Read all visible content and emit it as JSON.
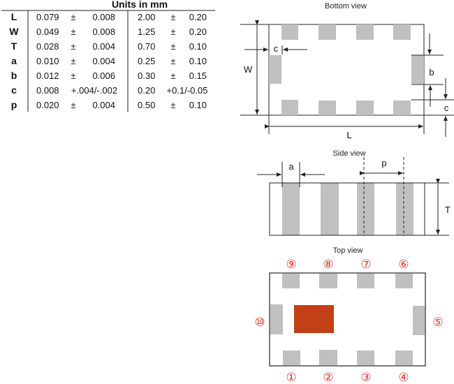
{
  "table": {
    "header": "Units in mm",
    "rows": [
      {
        "param": "L",
        "in_value": "0.079",
        "in_pm": "±",
        "in_tol": "0.008",
        "mm_value": "2.00",
        "mm_pm": "±",
        "mm_tol": "0.20"
      },
      {
        "param": "W",
        "in_value": "0.049",
        "in_pm": "±",
        "in_tol": "0.008",
        "mm_value": "1.25",
        "mm_pm": "±",
        "mm_tol": "0.20"
      },
      {
        "param": "T",
        "in_value": "0.028",
        "in_pm": "±",
        "in_tol": "0.004",
        "mm_value": "0.70",
        "mm_pm": "±",
        "mm_tol": "0.10"
      },
      {
        "param": "a",
        "in_value": "0.010",
        "in_pm": "±",
        "in_tol": "0.004",
        "mm_value": "0.25",
        "mm_pm": "±",
        "mm_tol": "0.10"
      },
      {
        "param": "b",
        "in_value": "0.012",
        "in_pm": "±",
        "in_tol": "0.006",
        "mm_value": "0.30",
        "mm_pm": "±",
        "mm_tol": "0.15"
      },
      {
        "param": "c",
        "in_value": "0.008",
        "in_pm": "",
        "in_tol": "+.004/-.002",
        "mm_value": "0.20",
        "mm_pm": "",
        "mm_tol": "+0.1/-0.05"
      },
      {
        "param": "p",
        "in_value": "0.020",
        "in_pm": "±",
        "in_tol": "0.004",
        "mm_value": "0.50",
        "mm_pm": "±",
        "mm_tol": "0.10"
      }
    ]
  },
  "bottom_view": {
    "title": "Bottom view",
    "labels": {
      "W": "W",
      "L": "L",
      "b": "b",
      "c_left": "c",
      "c_right": "c"
    }
  },
  "side_view": {
    "title": "Side view",
    "labels": {
      "a": "a",
      "p": "p",
      "T": "T"
    }
  },
  "top_view": {
    "title": "Top view",
    "pins": {
      "p1": "①",
      "p2": "②",
      "p3": "③",
      "p4": "④",
      "p5": "⑤",
      "p6": "⑥",
      "p7": "⑦",
      "p8": "⑧",
      "p9": "⑨",
      "p10": "⑩"
    }
  },
  "colors": {
    "pad": "#c0c0c0",
    "marker": "#c23f17",
    "pin_number": "#e0302a"
  }
}
